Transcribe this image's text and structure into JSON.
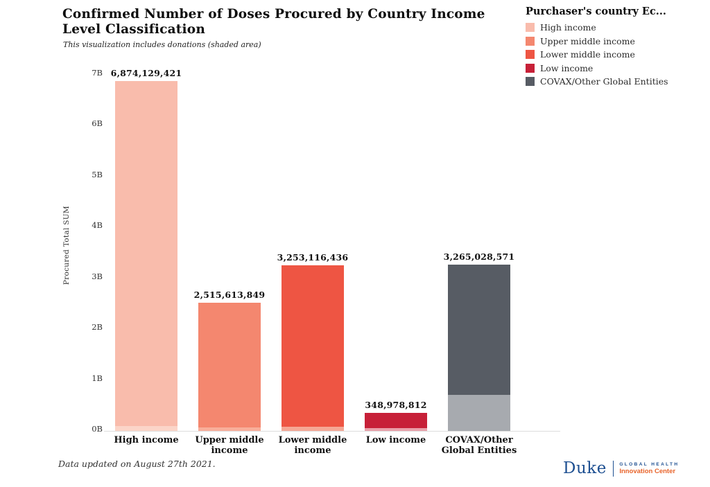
{
  "title": "Confirmed Number of Doses Procured by Country Income Level Classification",
  "subtitle": "This visualization includes donations (shaded area)",
  "legend": {
    "title": "Purchaser's country Ec...",
    "items": [
      {
        "label": "High income",
        "color": "#F9BCAC"
      },
      {
        "label": "Upper middle income",
        "color": "#F4876F"
      },
      {
        "label": "Lower middle income",
        "color": "#EE5543"
      },
      {
        "label": "Low income",
        "color": "#C72038"
      },
      {
        "label": "COVAX/Other Global Entities",
        "color": "#575C64"
      }
    ]
  },
  "chart_data": {
    "type": "bar",
    "title": "Confirmed Number of Doses Procured by Country Income Level Classification",
    "subtitle": "This visualization includes donations (shaded area)",
    "xlabel": "",
    "ylabel": "Procured Total SUM",
    "ylim_billions": [
      0,
      7.2
    ],
    "ytick_labels": [
      "0B",
      "1B",
      "2B",
      "3B",
      "4B",
      "5B",
      "6B",
      "7B"
    ],
    "grid": false,
    "legend_position": "top-right",
    "categories": [
      "High income",
      "Upper middle income",
      "Lower middle income",
      "Low income",
      "COVAX/Other Global Entities"
    ],
    "values": [
      6874129421,
      2515613849,
      3253116436,
      348978812,
      3265028571
    ],
    "value_labels": [
      "6,874,129,421",
      "2,515,613,849",
      "3,253,116,436",
      "348,978,812",
      "3,265,028,571"
    ],
    "bar_colors": [
      "#F9BCAC",
      "#F4876F",
      "#EE5543",
      "#C72038",
      "#575C64"
    ],
    "donation_shade_colors": [
      "#FBD5C8",
      "#F8AE9A",
      "#F5A795",
      "#E9A0A9",
      "#A7AAAF"
    ],
    "donations_estimated_from_shading": [
      95000000,
      68000000,
      82000000,
      54000000,
      707000000
    ]
  },
  "footer": {
    "note": "Data updated on August 27th 2021."
  },
  "logo": {
    "brand": "Duke",
    "line1": "GLOBAL HEALTH",
    "line2": "Innovation Center",
    "brand_color": "#1D4F91",
    "accent_color": "#E8642B"
  }
}
